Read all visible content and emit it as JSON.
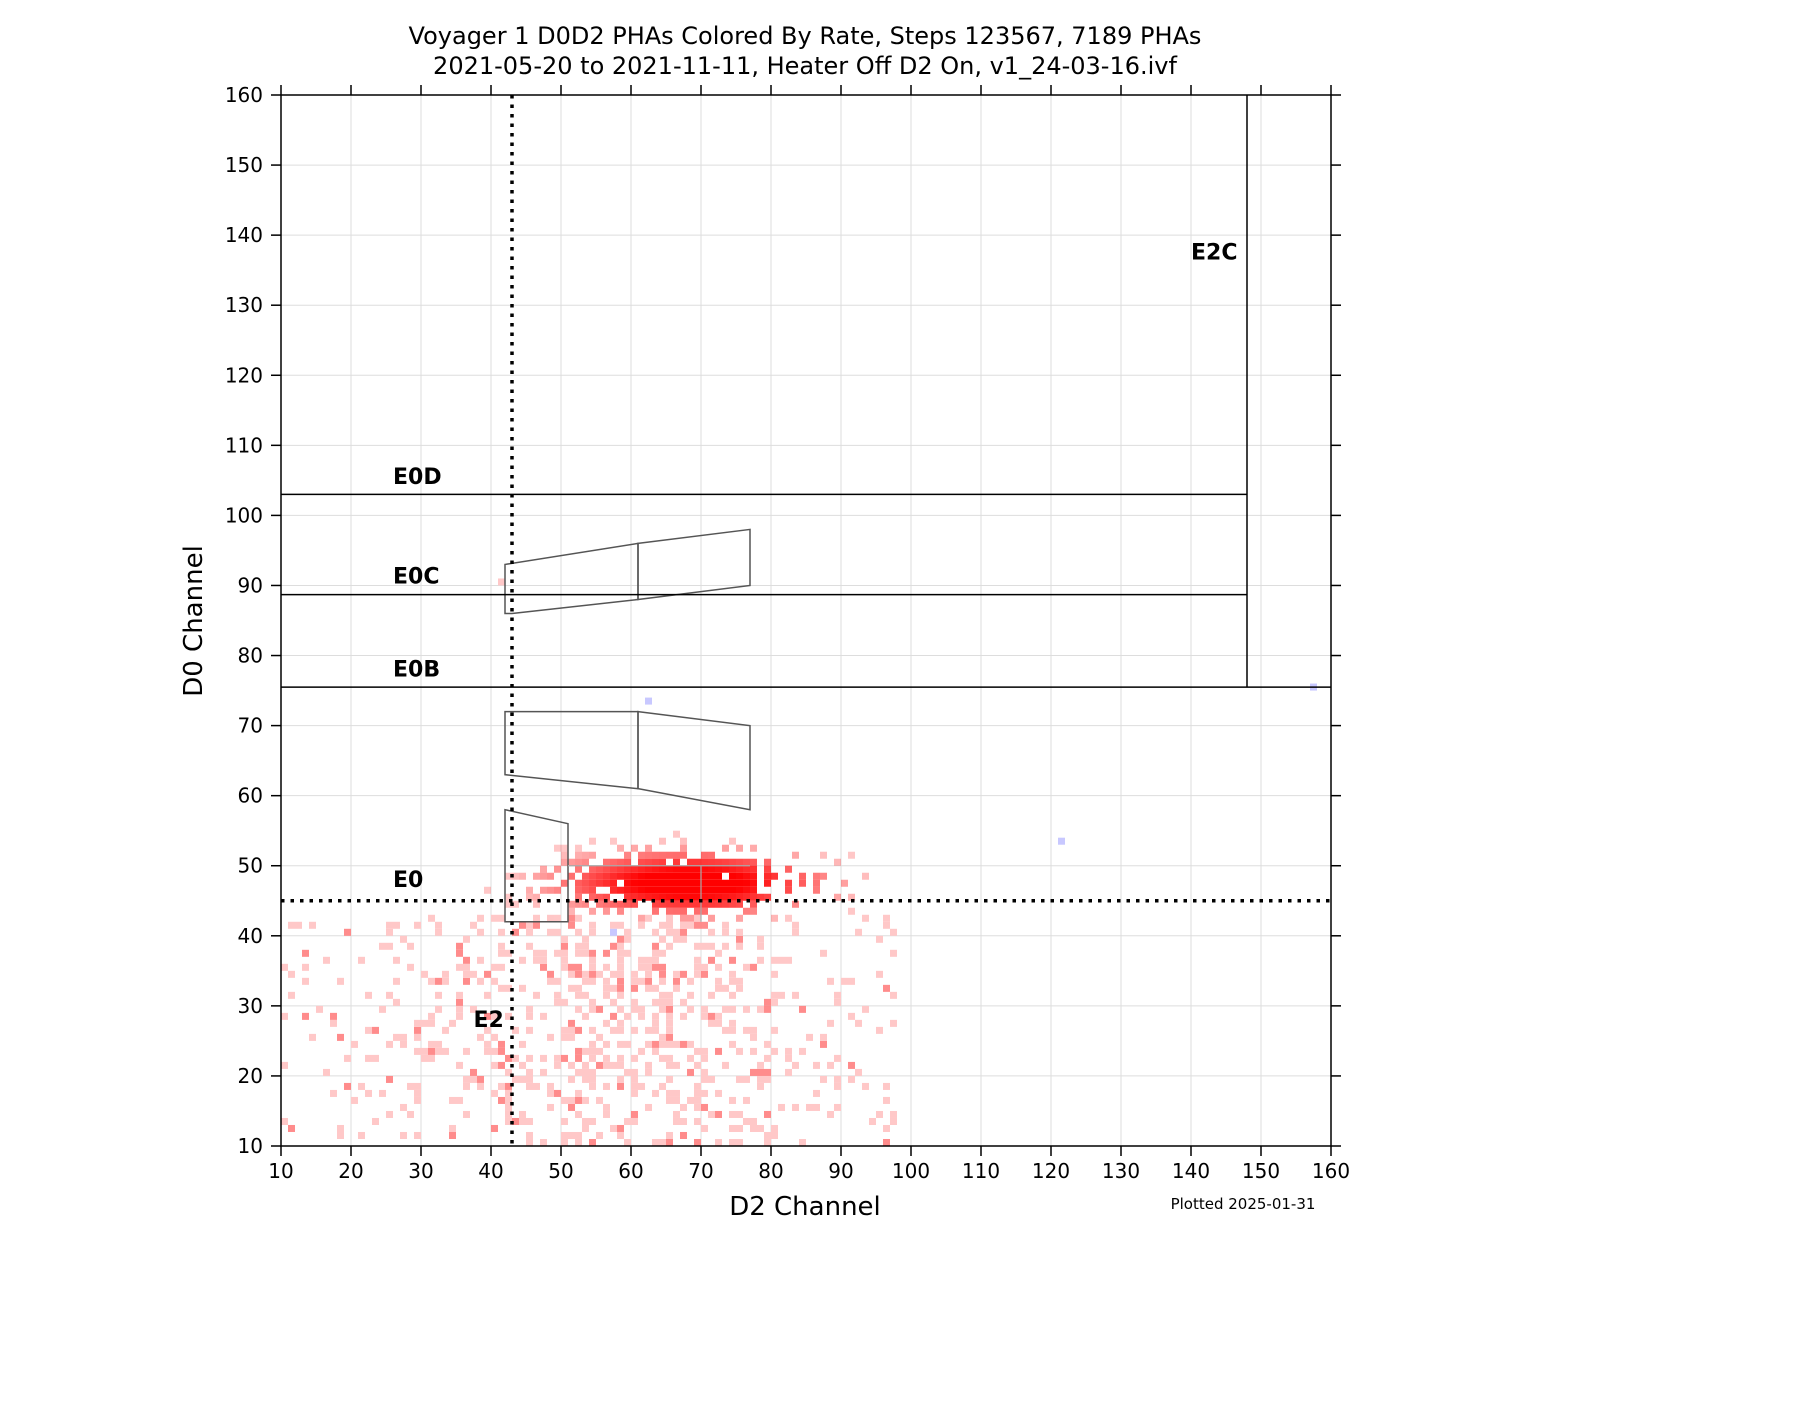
{
  "chart_data": {
    "type": "heatmap",
    "title_lines": [
      "Voyager 1 D0D2 PHAs Colored By Rate, Steps 123567, 7189 PHAs",
      "2021-05-20 to 2021-11-11, Heater Off D2 On, v1_24-03-16.ivf"
    ],
    "xlabel": "D2 Channel",
    "ylabel": "D0 Channel",
    "xlim": [
      10,
      160
    ],
    "ylim": [
      10,
      160
    ],
    "xticks": [
      10,
      20,
      30,
      40,
      50,
      60,
      70,
      80,
      90,
      100,
      110,
      120,
      130,
      140,
      150,
      160
    ],
    "yticks": [
      10,
      20,
      30,
      40,
      50,
      60,
      70,
      80,
      90,
      100,
      110,
      120,
      130,
      140,
      150,
      160
    ],
    "grid": true,
    "footnote": "Plotted 2025-01-31",
    "colors": {
      "high_rate": "#ff0000",
      "low_rate": "#ffc8c8",
      "other": "#c8c8ff",
      "grid": "#dddddd",
      "boundary": "#000000",
      "box": "#555555"
    },
    "thresholds": [
      {
        "axis": "y",
        "value": 45,
        "style": "dotted"
      },
      {
        "axis": "x",
        "value": 43,
        "style": "dotted"
      }
    ],
    "boundaries": [
      {
        "from": [
          10,
          75.5
        ],
        "to": [
          160,
          75.5
        ]
      },
      {
        "from": [
          10,
          88.7
        ],
        "to": [
          148,
          88.7
        ]
      },
      {
        "from": [
          10,
          103
        ],
        "to": [
          148,
          103
        ]
      },
      {
        "from": [
          148,
          75.5
        ],
        "to": [
          148,
          160
        ]
      }
    ],
    "region_labels": [
      {
        "text": "E0D",
        "x": 26,
        "y": 104.5
      },
      {
        "text": "E0C",
        "x": 26,
        "y": 90.3
      },
      {
        "text": "E0B",
        "x": 26,
        "y": 77
      },
      {
        "text": "E0",
        "x": 26,
        "y": 47
      },
      {
        "text": "E2",
        "x": 37.5,
        "y": 27
      },
      {
        "text": "E2C",
        "x": 140,
        "y": 136.5
      }
    ],
    "boxes": [
      [
        [
          42,
          93
        ],
        [
          61,
          96
        ],
        [
          61,
          88
        ],
        [
          43,
          86
        ],
        [
          42,
          86
        ]
      ],
      [
        [
          61,
          96
        ],
        [
          77,
          98
        ],
        [
          77,
          90
        ],
        [
          61,
          88
        ]
      ],
      [
        [
          42,
          72
        ],
        [
          61,
          72
        ],
        [
          61,
          61
        ],
        [
          42,
          63
        ]
      ],
      [
        [
          61,
          72
        ],
        [
          77,
          70
        ],
        [
          77,
          58
        ],
        [
          61,
          61
        ]
      ],
      [
        [
          42,
          58
        ],
        [
          51,
          56
        ],
        [
          51,
          42
        ],
        [
          42,
          42
        ]
      ]
    ],
    "inner_box_lines": [
      [
        [
          51,
          50
        ],
        [
          77,
          50
        ]
      ],
      [
        [
          70,
          50
        ],
        [
          70,
          42
        ]
      ]
    ],
    "dense_band": {
      "x_range": [
        42,
        77
      ],
      "y_range": [
        42,
        53
      ],
      "peak": [
        68,
        47
      ]
    },
    "sparse_cloud": {
      "x_range": [
        10,
        97
      ],
      "y_range": [
        10,
        42
      ]
    },
    "outliers": [
      {
        "x": 62,
        "y": 73,
        "color": "other"
      },
      {
        "x": 121,
        "y": 53,
        "color": "other"
      },
      {
        "x": 157,
        "y": 75,
        "color": "other"
      },
      {
        "x": 57,
        "y": 40,
        "color": "other"
      },
      {
        "x": 41,
        "y": 90,
        "color": "low_rate"
      }
    ]
  }
}
